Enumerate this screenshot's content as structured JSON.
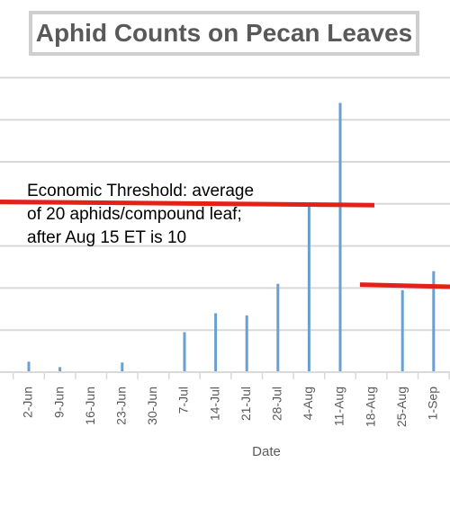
{
  "chart_data": {
    "type": "bar",
    "title": "Aphid Counts on Pecan Leaves",
    "xlabel": "Date",
    "ylabel": "",
    "ylim": [
      0,
      70
    ],
    "y_gridline_step": 10,
    "grid": true,
    "legend": "none",
    "bar_color": "#6a9fd0",
    "categories": [
      "2-Jun",
      "9-Jun",
      "16-Jun",
      "23-Jun",
      "30-Jun",
      "7-Jul",
      "14-Jul",
      "21-Jul",
      "28-Jul",
      "4-Aug",
      "11-Aug",
      "18-Aug",
      "25-Aug",
      "1-Sep"
    ],
    "series": [
      {
        "values": [
          {
            "x": "2-Jun",
            "y": 2.5
          },
          {
            "x": "9-Jun",
            "y": 1.2
          },
          {
            "x": "23-Jun",
            "y": 2.3
          },
          {
            "x": "7-Jul",
            "y": 9.5
          },
          {
            "x": "14-Jul",
            "y": 14
          },
          {
            "x": "21-Jul",
            "y": 13.5
          },
          {
            "x": "28-Jul",
            "y": 21
          },
          {
            "x": "4-Aug",
            "y": 40
          },
          {
            "x": "11-Aug",
            "y": 64
          },
          {
            "x": "25-Aug",
            "y": 19.5
          },
          {
            "x": "1-Sep",
            "y": 24
          }
        ]
      }
    ],
    "thresholds": [
      {
        "color": "#e32119",
        "y_start": 40.5,
        "y_end": 39.7,
        "x_start": "before 2-Jun",
        "x_end": "18-Aug"
      },
      {
        "color": "#e32119",
        "y_start": 20.8,
        "y_end": 20.3,
        "x_start": "18-Aug",
        "x_end": "after 1-Sep"
      }
    ],
    "annotation": {
      "lines": [
        "Economic Threshold: average",
        "of 20 aphids/compound leaf;",
        "after Aug 15 ET is 10"
      ]
    }
  }
}
